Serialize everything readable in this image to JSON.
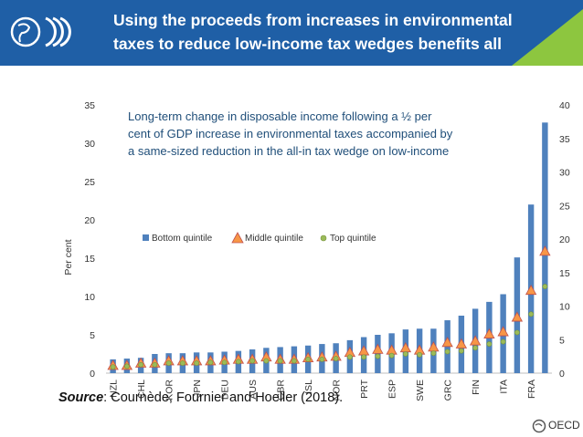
{
  "header": {
    "title_line1": "Using the proceeds from increases in environmental",
    "title_line2": "taxes to reduce low-income tax wedges benefits all"
  },
  "colors": {
    "header_blue": "#1f5fa6",
    "header_green": "#8dc63f",
    "bar": "#4f81bd",
    "triangle_fill": "#f79646",
    "triangle_stroke": "#c0504d",
    "circle_fill": "#9bbb59"
  },
  "source": {
    "label": "Source",
    "text": ": Cournède, Fournier and Hoeller (2018)."
  },
  "logo": {
    "text": "OECD"
  },
  "chart_data": {
    "type": "bar",
    "title": "Long-term change in disposable income following a ½ per cent of GDP increase in environmental taxes accompanied by a same-sized reduction in the all-in tax wedge on low-income",
    "title_lines": [
      "Long-term change in disposable income following a ½ per",
      "cent of GDP increase in environmental taxes accompanied by",
      "a same-sized reduction in the all-in tax wedge on low-income"
    ],
    "ylabel": "Per cent",
    "ylim": [
      0,
      35
    ],
    "y2lim": [
      0,
      40
    ],
    "yticks": [
      0,
      5,
      10,
      15,
      20,
      25,
      30,
      35
    ],
    "y2ticks": [
      0,
      5,
      10,
      15,
      20,
      25,
      30,
      35,
      40
    ],
    "categories": [
      "NZL",
      "",
      "CHL",
      "",
      "KOR",
      "",
      "JPN",
      "",
      "DEU",
      "",
      "AUS",
      "",
      "GBR",
      "",
      "ISL",
      "",
      "NOR",
      "",
      "PRT",
      "",
      "ESP",
      "",
      "SWE",
      "",
      "GRC",
      "",
      "FIN",
      "",
      "ITA",
      "",
      "FRA",
      ""
    ],
    "series": [
      {
        "name": "Bottom quintile",
        "kind": "bar",
        "axis": "left",
        "values": [
          1.8,
          1.9,
          2.0,
          2.5,
          2.6,
          2.6,
          2.7,
          2.7,
          2.8,
          2.9,
          3.1,
          3.3,
          3.4,
          3.5,
          3.6,
          3.8,
          3.9,
          4.3,
          4.7,
          5.0,
          5.2,
          5.7,
          5.8,
          5.8,
          6.9,
          7.5,
          8.4,
          9.3,
          10.3,
          15.1,
          22.0,
          32.7
        ]
      },
      {
        "name": "Middle quintile",
        "kind": "triangle",
        "axis": "left",
        "values": [
          1.0,
          1.0,
          1.3,
          1.3,
          1.6,
          1.6,
          1.6,
          1.6,
          1.7,
          1.8,
          1.8,
          2.1,
          1.8,
          1.8,
          2.0,
          2.1,
          2.2,
          2.7,
          2.9,
          3.1,
          3.0,
          3.3,
          3.0,
          3.4,
          4.0,
          3.8,
          4.2,
          5.1,
          5.4,
          7.3,
          10.8,
          15.9
        ]
      },
      {
        "name": "Top quintile",
        "kind": "circle",
        "axis": "left",
        "values": [
          0.8,
          0.9,
          1.1,
          1.1,
          1.3,
          1.3,
          1.3,
          1.4,
          1.4,
          1.5,
          1.6,
          1.6,
          1.6,
          1.6,
          1.8,
          1.8,
          1.9,
          2.1,
          2.1,
          2.2,
          2.3,
          2.5,
          2.4,
          2.6,
          2.8,
          2.9,
          3.3,
          3.8,
          4.1,
          5.3,
          7.7,
          11.3
        ]
      }
    ],
    "legend": [
      "Bottom quintile",
      "Middle quintile",
      "Top quintile"
    ],
    "legend_position": "center",
    "grid": false
  }
}
